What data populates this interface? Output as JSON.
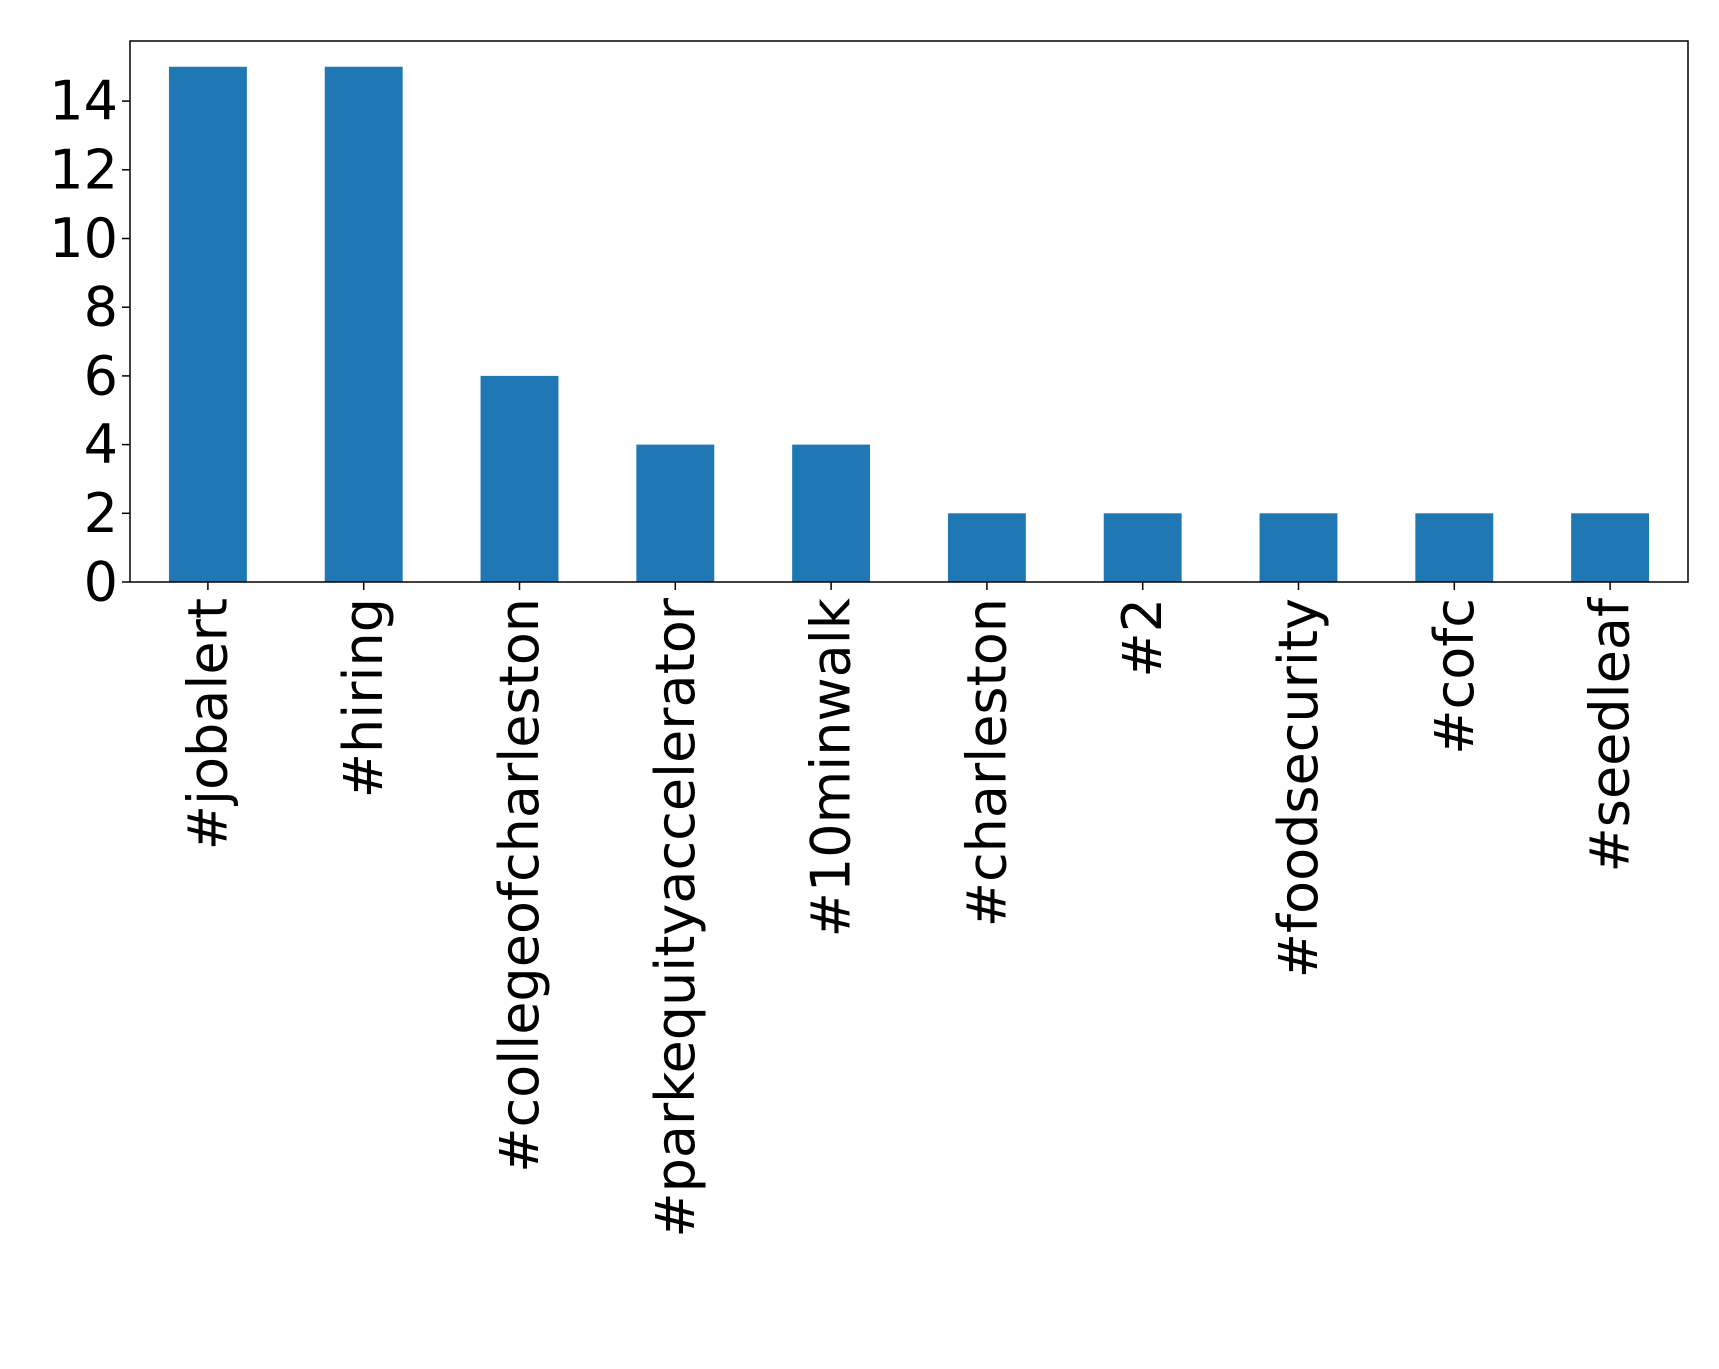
{
  "chart_data": {
    "type": "bar",
    "title": "",
    "xlabel": "",
    "ylabel": "",
    "categories": [
      "#jobalert",
      "#hiring",
      "#collegeofcharleston",
      "#parkequityaccelerator",
      "#10minwalk",
      "#charleston",
      "#2",
      "#foodsecurity",
      "#cofc",
      "#seedleaf"
    ],
    "values": [
      15,
      15,
      6,
      4,
      4,
      2,
      2,
      2,
      2,
      2
    ],
    "ylim": [
      0,
      15.75
    ],
    "yticks": [
      0,
      2,
      4,
      6,
      8,
      10,
      12,
      14
    ],
    "grid": false,
    "legend": "none",
    "bar_color": "#1f77b4",
    "axis_color": "#000000"
  }
}
